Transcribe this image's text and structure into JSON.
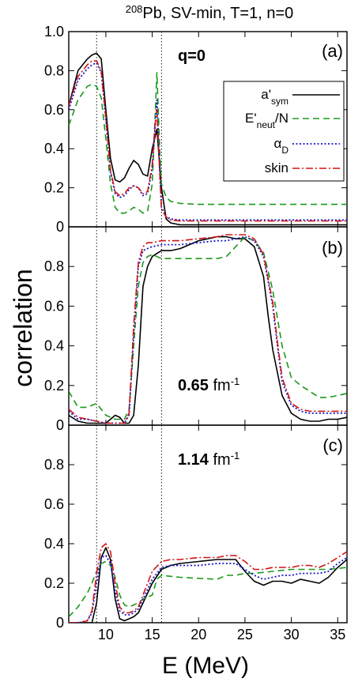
{
  "figure": {
    "title_iso": "208",
    "title_text": "Pb, SV-min, T=1, n=0",
    "ylabel": "correlation",
    "xlabel": "E (MeV)"
  },
  "legend": [
    {
      "key": "asym",
      "label": "a'",
      "sub": "sym",
      "color": "#000000"
    },
    {
      "key": "eneut",
      "label": "E'",
      "sub": "neut",
      "suffix": "/N",
      "color": "#1a9a1a"
    },
    {
      "key": "alpha",
      "label": "α",
      "sub": "D",
      "color": "#1515c8"
    },
    {
      "key": "skin",
      "label": "skin",
      "sub": "",
      "color": "#d01414"
    }
  ],
  "panels": [
    {
      "label": "(a)",
      "annotation_bold": "q=0",
      "annotation_rest": "",
      "annotation_sup": ""
    },
    {
      "label": "(b)",
      "annotation_bold": "0.65",
      "annotation_rest": " fm",
      "annotation_sup": "-1"
    },
    {
      "label": "(c)",
      "annotation_bold": "1.14",
      "annotation_rest": " fm",
      "annotation_sup": "-1"
    }
  ],
  "chart_data": [
    {
      "type": "line",
      "panel": "(a)",
      "xlim": [
        6,
        36
      ],
      "ylim": [
        0,
        1.0
      ],
      "yticks": [
        "0",
        "0.2",
        "0.4",
        "0.6",
        "0.8",
        "1.0"
      ],
      "xticks": [
        10,
        15,
        20,
        25,
        30,
        35
      ],
      "vlines": [
        9,
        16
      ],
      "series": [
        {
          "name": "asym",
          "x": [
            6,
            7,
            8,
            8.5,
            9,
            9.5,
            10,
            10.5,
            11,
            11.5,
            12,
            12.5,
            13,
            13.5,
            14,
            14.5,
            15,
            15.5,
            16,
            16.5,
            17,
            18,
            20,
            25,
            30,
            36
          ],
          "y": [
            0.62,
            0.8,
            0.86,
            0.88,
            0.89,
            0.86,
            0.6,
            0.35,
            0.24,
            0.23,
            0.25,
            0.3,
            0.34,
            0.32,
            0.27,
            0.26,
            0.4,
            0.5,
            0.2,
            0.04,
            0.02,
            0.01,
            0.01,
            0.01,
            0.01,
            0.01
          ]
        },
        {
          "name": "eneut",
          "x": [
            6,
            7,
            8,
            8.5,
            9,
            9.5,
            10,
            10.5,
            11,
            11.5,
            12,
            12.5,
            13,
            13.5,
            14,
            14.5,
            15,
            15.3,
            15.5,
            15.8,
            16,
            16.5,
            17,
            18,
            20,
            25,
            30,
            36
          ],
          "y": [
            0.52,
            0.65,
            0.72,
            0.73,
            0.72,
            0.66,
            0.45,
            0.22,
            0.1,
            0.07,
            0.07,
            0.08,
            0.1,
            0.09,
            0.07,
            0.08,
            0.22,
            0.55,
            0.79,
            0.4,
            0.22,
            0.15,
            0.13,
            0.12,
            0.115,
            0.115,
            0.115,
            0.115
          ]
        },
        {
          "name": "alpha",
          "x": [
            6,
            7,
            8,
            8.5,
            9,
            9.5,
            10,
            10.5,
            11,
            11.5,
            12,
            12.5,
            13,
            13.5,
            14,
            14.5,
            15,
            15.3,
            15.5,
            15.8,
            16,
            16.5,
            17,
            18,
            20,
            25,
            30,
            36
          ],
          "y": [
            0.6,
            0.75,
            0.81,
            0.83,
            0.84,
            0.79,
            0.55,
            0.28,
            0.17,
            0.15,
            0.16,
            0.19,
            0.21,
            0.2,
            0.16,
            0.17,
            0.3,
            0.5,
            0.65,
            0.3,
            0.1,
            0.05,
            0.04,
            0.035,
            0.035,
            0.035,
            0.035,
            0.035
          ]
        },
        {
          "name": "skin",
          "x": [
            6,
            7,
            8,
            8.5,
            9,
            9.5,
            10,
            10.5,
            11,
            11.5,
            12,
            12.5,
            13,
            13.5,
            14,
            14.5,
            15,
            15.3,
            15.5,
            15.8,
            16,
            16.5,
            17,
            18,
            20,
            25,
            30,
            36
          ],
          "y": [
            0.62,
            0.77,
            0.83,
            0.85,
            0.85,
            0.8,
            0.56,
            0.29,
            0.18,
            0.16,
            0.17,
            0.2,
            0.21,
            0.2,
            0.17,
            0.18,
            0.32,
            0.52,
            0.6,
            0.28,
            0.09,
            0.05,
            0.035,
            0.03,
            0.03,
            0.03,
            0.03,
            0.03
          ]
        }
      ]
    },
    {
      "type": "line",
      "panel": "(b)",
      "xlim": [
        6,
        36
      ],
      "ylim": [
        0,
        1.0
      ],
      "yticks": [
        "0",
        "0.2",
        "0.4",
        "0.6",
        "0.8"
      ],
      "xticks": [
        10,
        15,
        20,
        25,
        30,
        35
      ],
      "vlines": [
        9,
        16
      ],
      "series": [
        {
          "name": "asym",
          "x": [
            6,
            7,
            8,
            9,
            10,
            10.5,
            11,
            11.5,
            12,
            12.5,
            13,
            13.5,
            14,
            14.5,
            15,
            16,
            17,
            18,
            20,
            22,
            23,
            24,
            25,
            26,
            27,
            27.5,
            28,
            29,
            30,
            31,
            32,
            33,
            34,
            35,
            36
          ],
          "y": [
            0.05,
            0.02,
            0.01,
            0.01,
            0.01,
            0.03,
            0.05,
            0.04,
            0.01,
            0.01,
            0.05,
            0.3,
            0.7,
            0.8,
            0.85,
            0.88,
            0.88,
            0.89,
            0.93,
            0.95,
            0.95,
            0.94,
            0.94,
            0.9,
            0.75,
            0.55,
            0.38,
            0.15,
            0.06,
            0.03,
            0.02,
            0.02,
            0.03,
            0.03,
            0.04
          ]
        },
        {
          "name": "eneut",
          "x": [
            6,
            7,
            8,
            9,
            10,
            11,
            12,
            12.5,
            13,
            13.5,
            14,
            14.5,
            15,
            16,
            17,
            18,
            20,
            22,
            23,
            24,
            25,
            26,
            27,
            28,
            29,
            30,
            31,
            32,
            33,
            34,
            35,
            36
          ],
          "y": [
            0.17,
            0.09,
            0.09,
            0.11,
            0.05,
            0.03,
            0.03,
            0.08,
            0.4,
            0.7,
            0.82,
            0.85,
            0.86,
            0.84,
            0.84,
            0.84,
            0.84,
            0.84,
            0.85,
            0.9,
            0.95,
            0.93,
            0.87,
            0.68,
            0.4,
            0.24,
            0.2,
            0.17,
            0.14,
            0.14,
            0.15,
            0.16
          ]
        },
        {
          "name": "alpha",
          "x": [
            6,
            7,
            8,
            9,
            10,
            11,
            12,
            12.5,
            13,
            13.5,
            14,
            14.5,
            15,
            16,
            17,
            18,
            20,
            22,
            23,
            24,
            25,
            26,
            27,
            28,
            28.5,
            29,
            30,
            31,
            32,
            33,
            34,
            35,
            36
          ],
          "y": [
            0.07,
            0.03,
            0.03,
            0.02,
            0.01,
            0.01,
            0.01,
            0.05,
            0.45,
            0.8,
            0.88,
            0.89,
            0.9,
            0.91,
            0.91,
            0.91,
            0.92,
            0.93,
            0.93,
            0.94,
            0.95,
            0.93,
            0.85,
            0.6,
            0.4,
            0.22,
            0.1,
            0.07,
            0.06,
            0.06,
            0.06,
            0.06,
            0.06
          ]
        },
        {
          "name": "skin",
          "x": [
            6,
            7,
            8,
            9,
            10,
            11,
            12,
            12.5,
            13,
            13.5,
            14,
            14.5,
            15,
            16,
            17,
            18,
            20,
            22,
            23,
            24,
            25,
            26,
            27,
            28,
            28.5,
            29,
            30,
            31,
            32,
            33,
            34,
            35,
            36
          ],
          "y": [
            0.08,
            0.04,
            0.03,
            0.02,
            0.01,
            0.01,
            0.01,
            0.06,
            0.5,
            0.82,
            0.9,
            0.92,
            0.92,
            0.93,
            0.93,
            0.93,
            0.94,
            0.95,
            0.96,
            0.96,
            0.96,
            0.94,
            0.86,
            0.62,
            0.42,
            0.24,
            0.11,
            0.08,
            0.07,
            0.07,
            0.07,
            0.07,
            0.07
          ]
        }
      ]
    },
    {
      "type": "line",
      "panel": "(c)",
      "xlim": [
        6,
        36
      ],
      "ylim": [
        0,
        1.0
      ],
      "yticks": [
        "0",
        "0.2",
        "0.4",
        "0.6",
        "0.8"
      ],
      "xticks": [
        10,
        15,
        20,
        25,
        30,
        35
      ],
      "vlines": [
        9,
        16
      ],
      "series": [
        {
          "name": "asym",
          "x": [
            6,
            7,
            8,
            8.5,
            9,
            9.5,
            10,
            10.5,
            11,
            11.5,
            12,
            12.5,
            13,
            13.5,
            14,
            15,
            16,
            17,
            18,
            20,
            22,
            23,
            24,
            25,
            26,
            27,
            28,
            29,
            30,
            31,
            32,
            33,
            34,
            35,
            36
          ],
          "y": [
            0.0,
            0.0,
            0.0,
            0.0,
            0.1,
            0.33,
            0.38,
            0.32,
            0.12,
            0.02,
            0.01,
            0.02,
            0.03,
            0.05,
            0.1,
            0.2,
            0.27,
            0.29,
            0.3,
            0.31,
            0.32,
            0.32,
            0.32,
            0.26,
            0.21,
            0.19,
            0.21,
            0.21,
            0.2,
            0.22,
            0.21,
            0.2,
            0.23,
            0.28,
            0.32
          ]
        },
        {
          "name": "eneut",
          "x": [
            6,
            7,
            8,
            8.5,
            9,
            9.5,
            10,
            10.5,
            11,
            11.5,
            12,
            12.5,
            13,
            13.5,
            14,
            15,
            15.5,
            16,
            17,
            18,
            20,
            22,
            23,
            24,
            25,
            26,
            28,
            30,
            32,
            34,
            36
          ],
          "y": [
            0.03,
            0.08,
            0.15,
            0.2,
            0.26,
            0.3,
            0.31,
            0.29,
            0.23,
            0.14,
            0.09,
            0.08,
            0.09,
            0.1,
            0.12,
            0.14,
            0.22,
            0.24,
            0.235,
            0.23,
            0.225,
            0.22,
            0.24,
            0.24,
            0.25,
            0.25,
            0.26,
            0.27,
            0.27,
            0.27,
            0.28
          ]
        },
        {
          "name": "alpha",
          "x": [
            6,
            7,
            8,
            8.5,
            9,
            9.5,
            10,
            10.5,
            11,
            11.5,
            12,
            12.5,
            13,
            13.5,
            14,
            15,
            16,
            17,
            18,
            20,
            22,
            23,
            24,
            25,
            26,
            27,
            28,
            29,
            30,
            31,
            32,
            33,
            34,
            35,
            36
          ],
          "y": [
            0.0,
            0.0,
            0.01,
            0.05,
            0.2,
            0.33,
            0.34,
            0.3,
            0.16,
            0.06,
            0.04,
            0.04,
            0.05,
            0.07,
            0.12,
            0.22,
            0.28,
            0.29,
            0.29,
            0.29,
            0.3,
            0.3,
            0.3,
            0.27,
            0.24,
            0.22,
            0.23,
            0.24,
            0.24,
            0.25,
            0.25,
            0.25,
            0.26,
            0.3,
            0.33
          ]
        },
        {
          "name": "skin",
          "x": [
            6,
            7,
            8,
            8.5,
            9,
            9.5,
            10,
            10.5,
            11,
            11.5,
            12,
            12.5,
            13,
            13.5,
            14,
            15,
            16,
            17,
            18,
            20,
            22,
            23,
            24,
            25,
            26,
            27,
            28,
            29,
            30,
            31,
            32,
            33,
            34,
            35,
            36
          ],
          "y": [
            0.0,
            0.0,
            0.01,
            0.06,
            0.25,
            0.38,
            0.4,
            0.36,
            0.2,
            0.08,
            0.05,
            0.05,
            0.06,
            0.08,
            0.14,
            0.26,
            0.31,
            0.32,
            0.32,
            0.33,
            0.33,
            0.34,
            0.34,
            0.31,
            0.27,
            0.27,
            0.28,
            0.28,
            0.28,
            0.29,
            0.29,
            0.28,
            0.3,
            0.33,
            0.36
          ]
        }
      ]
    }
  ]
}
